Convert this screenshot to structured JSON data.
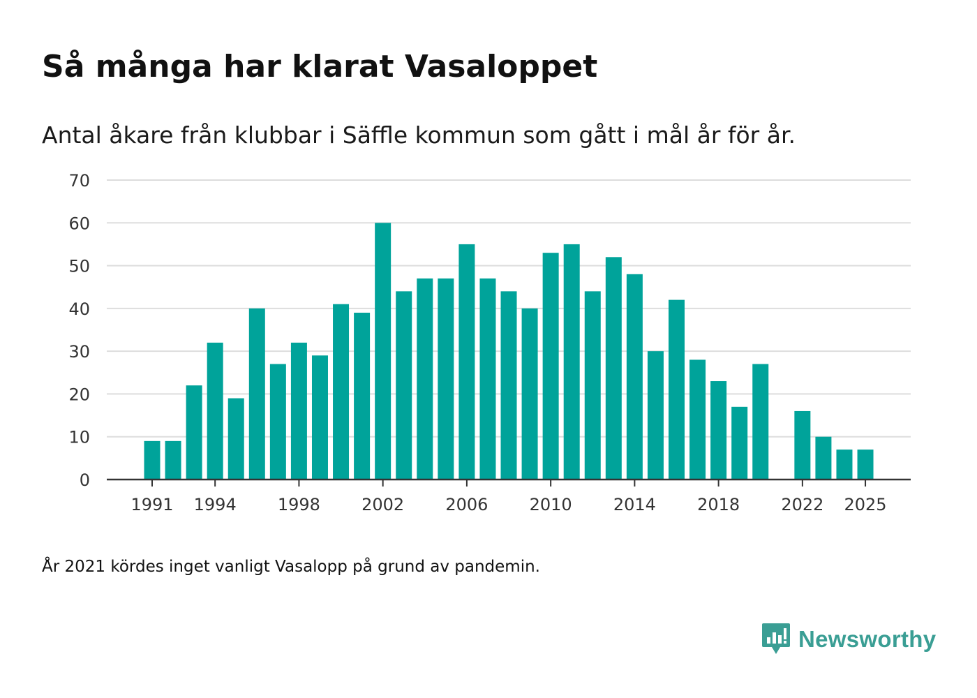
{
  "title": "Så många har klarat Vasaloppet",
  "subtitle": "Antal åkare från klubbar i Säffle kommun som gått i mål år för år.",
  "footnote": "År 2021 kördes inget vanligt Vasalopp på grund av pandemin.",
  "brand": {
    "name": "Newsworthy",
    "logo_icon": "bar-chart-pin-icon",
    "color": "#3a9e94"
  },
  "colors": {
    "bar": "#00a39a",
    "grid": "#dddddd",
    "axis": "#333333"
  },
  "chart_data": {
    "type": "bar",
    "title": "Så många har klarat Vasaloppet",
    "subtitle": "Antal åkare från klubbar i Säffle kommun som gått i mål år för år.",
    "xlabel": "",
    "ylabel": "",
    "ylim": [
      0,
      70
    ],
    "yticks": [
      0,
      10,
      20,
      30,
      40,
      50,
      60,
      70
    ],
    "xticks": [
      1991,
      1994,
      1998,
      2002,
      2006,
      2010,
      2014,
      2018,
      2022,
      2025
    ],
    "grid": true,
    "categories": [
      1991,
      1992,
      1993,
      1994,
      1995,
      1996,
      1997,
      1998,
      1999,
      2000,
      2001,
      2002,
      2003,
      2004,
      2005,
      2006,
      2007,
      2008,
      2009,
      2010,
      2011,
      2012,
      2013,
      2014,
      2015,
      2016,
      2017,
      2018,
      2019,
      2020,
      2021,
      2022,
      2023,
      2024,
      2025
    ],
    "values": [
      9,
      9,
      22,
      32,
      19,
      40,
      27,
      32,
      29,
      41,
      39,
      60,
      44,
      47,
      47,
      55,
      47,
      44,
      40,
      53,
      55,
      44,
      52,
      48,
      30,
      42,
      28,
      23,
      17,
      27,
      null,
      16,
      10,
      7,
      7
    ]
  }
}
